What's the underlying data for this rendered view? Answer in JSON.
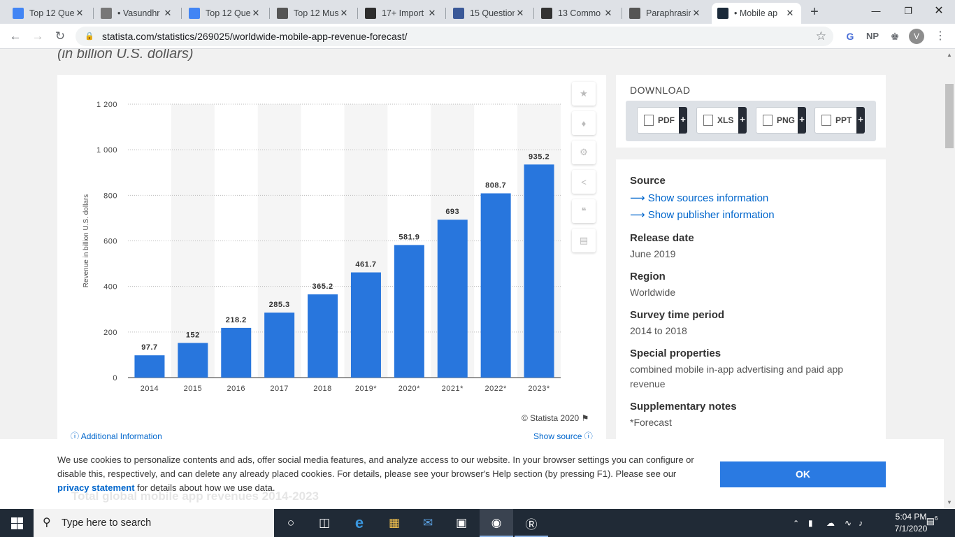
{
  "browser": {
    "tabs": [
      {
        "title": "Top 12 Que",
        "icon": "docs-icon",
        "color": "#4285f4"
      },
      {
        "title": "• Vasundhr",
        "icon": "people-icon",
        "color": "#777777"
      },
      {
        "title": "Top 12 Que",
        "icon": "google-icon",
        "color": "#4285f4"
      },
      {
        "title": "Top 12 Mus",
        "icon": "page-icon",
        "color": "#555555"
      },
      {
        "title": "17+ Import",
        "icon": "cube-icon",
        "color": "#2d2d2d"
      },
      {
        "title": "15 Question",
        "icon": "grid-icon",
        "color": "#3b5998"
      },
      {
        "title": "13 Commo",
        "icon": "tool-icon",
        "color": "#333333"
      },
      {
        "title": "Paraphrasin",
        "icon": "quill-icon",
        "color": "#555555"
      },
      {
        "title": "• Mobile ap",
        "icon": "statista-icon",
        "color": "#1b2a3a"
      }
    ],
    "new_tab": "+",
    "url": "statista.com/statistics/269025/worldwide-mobile-app-revenue-forecast/",
    "ext_np": "NP",
    "avatar": "V"
  },
  "page": {
    "subtitle": "(in billion U.S. dollars)",
    "copyright": "© Statista 2020",
    "additional_info": "Additional Information",
    "show_source": "Show source",
    "download": {
      "title": "DOWNLOAD",
      "buttons": [
        {
          "label": "PDF",
          "plus": "+"
        },
        {
          "label": "XLS",
          "plus": "+"
        },
        {
          "label": "PNG",
          "plus": "+"
        },
        {
          "label": "PPT",
          "plus": "+"
        }
      ]
    },
    "info": {
      "source_h": "Source",
      "source_link1": "Show sources information",
      "source_link2": "Show publisher information",
      "release_h": "Release date",
      "release_v": "June 2019",
      "region_h": "Region",
      "region_v": "Worldwide",
      "survey_h": "Survey time period",
      "survey_v": "2014 to 2018",
      "special_h": "Special properties",
      "special_v": "combined mobile in-app advertising and paid app revenue",
      "supp_h": "Supplementary notes",
      "supp_v": "*Forecast"
    },
    "behind_heading": "Total global mobile app revenues 2014-2023"
  },
  "cookie": {
    "text": "We use cookies to personalize contents and ads, offer social media features, and analyze access to our website. In your browser settings you can configure or disable this, respectively, and can delete any already placed cookies. For details, please see your browser's Help section (by pressing F1). Please see our ",
    "link": "privacy statement",
    "text_after": " for details about how we use data.",
    "ok": "OK"
  },
  "taskbar": {
    "search_placeholder": "Type here to search",
    "time": "5:04 PM",
    "date": "7/1/2020",
    "notif_count": "6"
  },
  "chart_data": {
    "type": "bar",
    "categories": [
      "2014",
      "2015",
      "2016",
      "2017",
      "2018",
      "2019*",
      "2020*",
      "2021*",
      "2022*",
      "2023*"
    ],
    "values": [
      97.7,
      152,
      218.2,
      285.3,
      365.2,
      461.7,
      581.9,
      693,
      808.7,
      935.2
    ],
    "value_labels": [
      "97.7",
      "152",
      "218.2",
      "285.3",
      "365.2",
      "461.7",
      "581.9",
      "693",
      "808.7",
      "935.2"
    ],
    "ylabel": "Revenue in billion U.S. dollars",
    "ylim": [
      0,
      1200
    ],
    "yticks": [
      0,
      200,
      400,
      600,
      800,
      1000,
      1200
    ],
    "ytick_labels": [
      "0",
      "200",
      "400",
      "600",
      "800",
      "1 000",
      "1 200"
    ],
    "bar_color": "#2876dd",
    "grid": true
  }
}
